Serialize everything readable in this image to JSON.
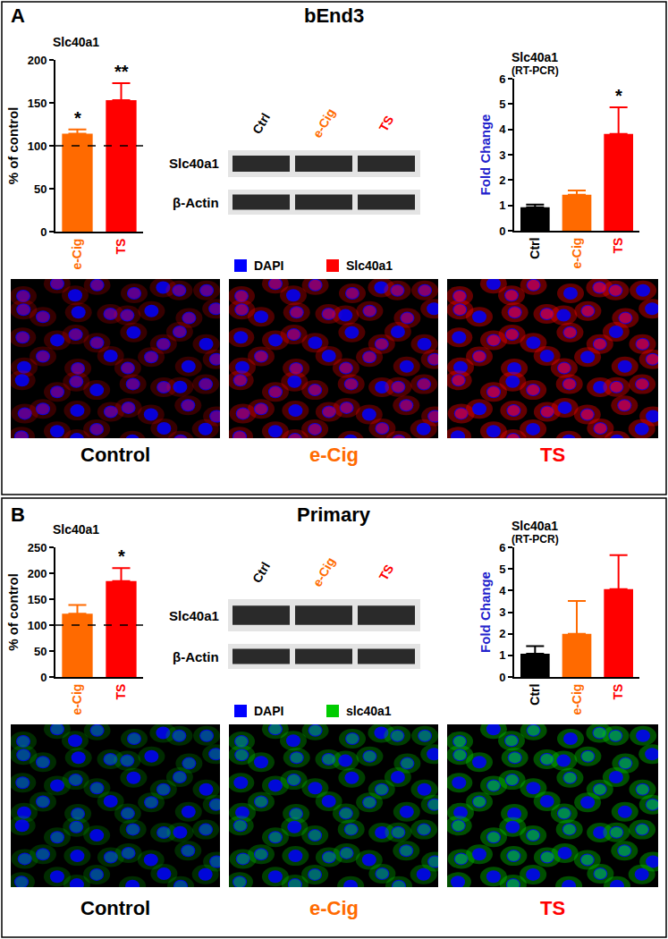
{
  "chart_data": [
    {
      "type": "bar",
      "title": "Slc40a1",
      "y_label": "% of control",
      "categories": [
        "e-Cig",
        "TS"
      ],
      "values": [
        114,
        153
      ],
      "errors": [
        5,
        20
      ],
      "colors": [
        "#ff6a00",
        "#ff0000"
      ],
      "annotations": [
        "*",
        "**"
      ],
      "reference_line": 100,
      "ylim": [
        0,
        200
      ],
      "yticks": [
        0,
        50,
        100,
        150,
        200
      ]
    },
    {
      "type": "bar",
      "title": "Slc40a1",
      "subtitle": "(RT-PCR)",
      "y_label": "Fold Change",
      "categories": [
        "Ctrl",
        "e-Cig",
        "TS"
      ],
      "values": [
        0.93,
        1.42,
        3.82
      ],
      "errors": [
        0.1,
        0.17,
        1.05
      ],
      "colors": [
        "#000000",
        "#ff6a00",
        "#ff0000"
      ],
      "annotations": [
        null,
        null,
        "*"
      ],
      "ylim": [
        0,
        6
      ],
      "yticks": [
        0,
        1,
        2,
        3,
        4,
        5,
        6
      ]
    },
    {
      "type": "bar",
      "title": "Slc40a1",
      "y_label": "% of control",
      "categories": [
        "e-Cig",
        "TS"
      ],
      "values": [
        122,
        185
      ],
      "errors": [
        17,
        25
      ],
      "colors": [
        "#ff6a00",
        "#ff0000"
      ],
      "annotations": [
        null,
        "*"
      ],
      "reference_line": 100,
      "ylim": [
        0,
        250
      ],
      "yticks": [
        0,
        50,
        100,
        150,
        200,
        250
      ]
    },
    {
      "type": "bar",
      "title": "Slc40a1",
      "subtitle": "(RT-PCR)",
      "y_label": "Fold Change",
      "categories": [
        "Ctrl",
        "e-Cig",
        "TS"
      ],
      "values": [
        1.08,
        2.0,
        4.07
      ],
      "errors": [
        0.35,
        1.52,
        1.57
      ],
      "colors": [
        "#000000",
        "#ff6a00",
        "#ff0000"
      ],
      "ylim": [
        0,
        6
      ],
      "yticks": [
        0,
        1,
        2,
        3,
        4,
        5,
        6
      ]
    }
  ],
  "panels": [
    {
      "label": "A",
      "title": "bEnd3",
      "blot": {
        "lanes": [
          "Ctrl",
          "e-Cig",
          "TS"
        ],
        "rows": [
          "Slc40a1",
          "β-Actin"
        ]
      },
      "stain_legend": [
        {
          "name": "DAPI",
          "color": "#0000ff"
        },
        {
          "name": "Slc40a1",
          "color": "#ff0000"
        }
      ],
      "images": [
        "Control",
        "e-Cig",
        "TS"
      ]
    },
    {
      "label": "B",
      "title": "Primary",
      "blot": {
        "lanes": [
          "Ctrl",
          "e-Cig",
          "TS"
        ],
        "rows": [
          "Slc40a1",
          "β-Actin"
        ]
      },
      "stain_legend": [
        {
          "name": "DAPI",
          "color": "#0000ff"
        },
        {
          "name": "slc40a1",
          "color": "#00cc00"
        }
      ],
      "images": [
        "Control",
        "e-Cig",
        "TS"
      ]
    }
  ]
}
